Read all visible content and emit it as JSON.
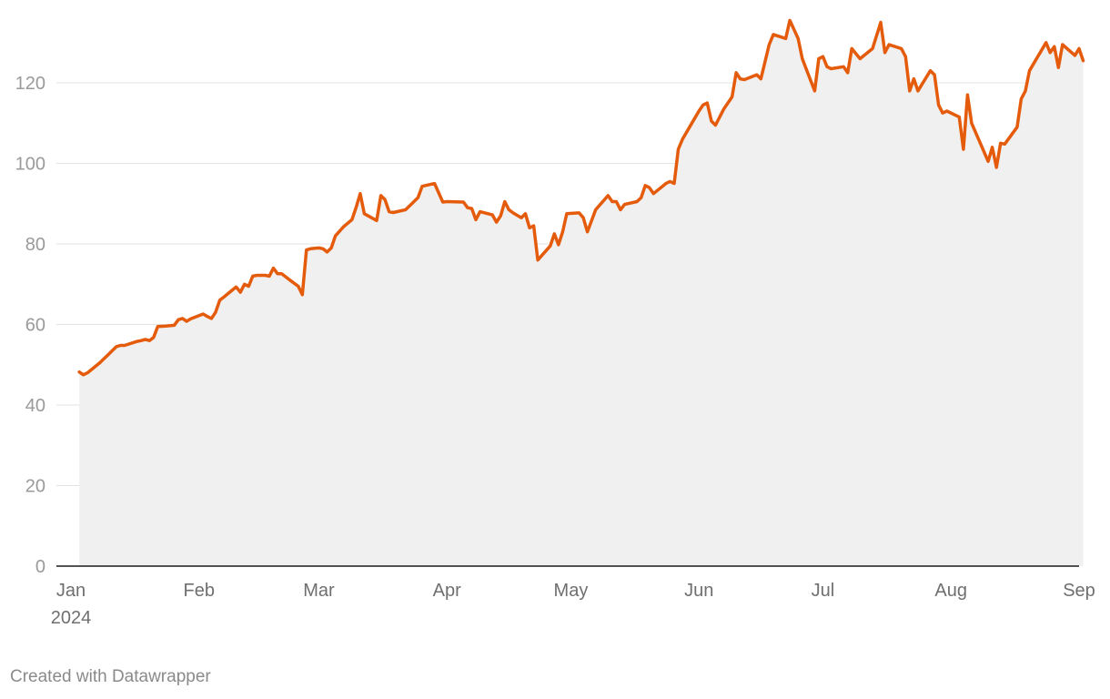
{
  "credit": "Created with Datawrapper",
  "colors": {
    "line": "#e55b0c",
    "area": "#f0f0f0",
    "grid": "#e3e3e3",
    "axis": "#1a1a1a"
  },
  "chart_data": {
    "type": "area",
    "title": "",
    "xlabel": "",
    "ylabel": "",
    "ylim": [
      0,
      135
    ],
    "xlim": [
      "2024-01-01",
      "2024-09-01"
    ],
    "grid": true,
    "yticks": [
      0,
      20,
      40,
      60,
      80,
      100,
      120
    ],
    "xticks": [
      {
        "date": "2024-01-01",
        "label": "Jan",
        "sublabel": "2024"
      },
      {
        "date": "2024-02-01",
        "label": "Feb"
      },
      {
        "date": "2024-03-01",
        "label": "Mar"
      },
      {
        "date": "2024-04-01",
        "label": "Apr"
      },
      {
        "date": "2024-05-01",
        "label": "May"
      },
      {
        "date": "2024-06-01",
        "label": "Jun"
      },
      {
        "date": "2024-07-01",
        "label": "Jul"
      },
      {
        "date": "2024-08-01",
        "label": "Aug"
      },
      {
        "date": "2024-09-01",
        "label": "Sep"
      }
    ],
    "series": [
      {
        "points": [
          [
            "2024-01-03",
            48.2
          ],
          [
            "2024-01-04",
            47.5
          ],
          [
            "2024-01-05",
            48.0
          ],
          [
            "2024-01-08",
            50.5
          ],
          [
            "2024-01-09",
            51.5
          ],
          [
            "2024-01-10",
            52.5
          ],
          [
            "2024-01-11",
            53.5
          ],
          [
            "2024-01-12",
            54.5
          ],
          [
            "2024-01-13",
            54.8
          ],
          [
            "2024-01-14",
            54.8
          ],
          [
            "2024-01-17",
            55.8
          ],
          [
            "2024-01-18",
            56.0
          ],
          [
            "2024-01-19",
            56.3
          ],
          [
            "2024-01-20",
            56.0
          ],
          [
            "2024-01-21",
            56.8
          ],
          [
            "2024-01-22",
            59.5
          ],
          [
            "2024-01-24",
            59.6
          ],
          [
            "2024-01-26",
            59.8
          ],
          [
            "2024-01-27",
            61.2
          ],
          [
            "2024-01-28",
            61.5
          ],
          [
            "2024-01-29",
            60.8
          ],
          [
            "2024-01-30",
            61.4
          ],
          [
            "2024-02-01",
            62.2
          ],
          [
            "2024-02-02",
            62.6
          ],
          [
            "2024-02-03",
            62.0
          ],
          [
            "2024-02-04",
            61.5
          ],
          [
            "2024-02-05",
            63.0
          ],
          [
            "2024-02-06",
            66.0
          ],
          [
            "2024-02-07",
            66.8
          ],
          [
            "2024-02-09",
            68.5
          ],
          [
            "2024-02-10",
            69.3
          ],
          [
            "2024-02-11",
            68.0
          ],
          [
            "2024-02-12",
            70.0
          ],
          [
            "2024-02-13",
            69.5
          ],
          [
            "2024-02-14",
            72.0
          ],
          [
            "2024-02-15",
            72.2
          ],
          [
            "2024-02-17",
            72.2
          ],
          [
            "2024-02-18",
            72.0
          ],
          [
            "2024-02-19",
            74.0
          ],
          [
            "2024-02-20",
            72.6
          ],
          [
            "2024-02-21",
            72.6
          ],
          [
            "2024-02-23",
            71.0
          ],
          [
            "2024-02-25",
            69.5
          ],
          [
            "2024-02-26",
            67.4
          ],
          [
            "2024-02-27",
            78.5
          ],
          [
            "2024-02-28",
            78.8
          ],
          [
            "2024-03-01",
            79.0
          ],
          [
            "2024-03-02",
            78.8
          ],
          [
            "2024-03-03",
            78.0
          ],
          [
            "2024-03-04",
            79.0
          ],
          [
            "2024-03-05",
            82.0
          ],
          [
            "2024-03-07",
            84.3
          ],
          [
            "2024-03-09",
            86.0
          ],
          [
            "2024-03-10",
            89.0
          ],
          [
            "2024-03-11",
            92.5
          ],
          [
            "2024-03-12",
            87.5
          ],
          [
            "2024-03-15",
            85.8
          ],
          [
            "2024-03-16",
            92.0
          ],
          [
            "2024-03-17",
            91.0
          ],
          [
            "2024-03-18",
            88.0
          ],
          [
            "2024-03-19",
            87.8
          ],
          [
            "2024-03-22",
            88.5
          ],
          [
            "2024-03-23",
            89.5
          ],
          [
            "2024-03-25",
            91.5
          ],
          [
            "2024-03-26",
            94.3
          ],
          [
            "2024-03-29",
            95.0
          ],
          [
            "2024-03-31",
            90.4
          ],
          [
            "2024-04-01",
            90.5
          ],
          [
            "2024-04-05",
            90.4
          ],
          [
            "2024-04-06",
            89.0
          ],
          [
            "2024-04-07",
            88.8
          ],
          [
            "2024-04-08",
            86.0
          ],
          [
            "2024-04-09",
            88.0
          ],
          [
            "2024-04-12",
            87.2
          ],
          [
            "2024-04-13",
            85.4
          ],
          [
            "2024-04-14",
            87.0
          ],
          [
            "2024-04-15",
            90.5
          ],
          [
            "2024-04-16",
            88.5
          ],
          [
            "2024-04-17",
            87.7
          ],
          [
            "2024-04-19",
            86.5
          ],
          [
            "2024-04-20",
            87.5
          ],
          [
            "2024-04-21",
            84.0
          ],
          [
            "2024-04-22",
            84.5
          ],
          [
            "2024-04-23",
            76.0
          ],
          [
            "2024-04-26",
            79.5
          ],
          [
            "2024-04-27",
            82.5
          ],
          [
            "2024-04-28",
            79.8
          ],
          [
            "2024-04-29",
            83.0
          ],
          [
            "2024-04-30",
            87.5
          ],
          [
            "2024-05-03",
            87.7
          ],
          [
            "2024-05-04",
            86.5
          ],
          [
            "2024-05-05",
            83.0
          ],
          [
            "2024-05-07",
            88.5
          ],
          [
            "2024-05-10",
            92.0
          ],
          [
            "2024-05-11",
            90.5
          ],
          [
            "2024-05-12",
            90.5
          ],
          [
            "2024-05-13",
            88.5
          ],
          [
            "2024-05-14",
            89.8
          ],
          [
            "2024-05-17",
            90.5
          ],
          [
            "2024-05-18",
            91.5
          ],
          [
            "2024-05-19",
            94.5
          ],
          [
            "2024-05-20",
            94.0
          ],
          [
            "2024-05-21",
            92.5
          ],
          [
            "2024-05-24",
            95.0
          ],
          [
            "2024-05-25",
            95.5
          ],
          [
            "2024-05-26",
            95.0
          ],
          [
            "2024-05-27",
            103.5
          ],
          [
            "2024-05-28",
            106.0
          ],
          [
            "2024-06-01",
            113.0
          ],
          [
            "2024-06-02",
            114.5
          ],
          [
            "2024-06-03",
            115.0
          ],
          [
            "2024-06-04",
            110.5
          ],
          [
            "2024-06-05",
            109.5
          ],
          [
            "2024-06-07",
            113.5
          ],
          [
            "2024-06-09",
            116.5
          ],
          [
            "2024-06-10",
            122.5
          ],
          [
            "2024-06-11",
            121.0
          ],
          [
            "2024-06-12",
            120.8
          ],
          [
            "2024-06-15",
            122.0
          ],
          [
            "2024-06-16",
            121.0
          ],
          [
            "2024-06-18",
            129.5
          ],
          [
            "2024-06-19",
            132.0
          ],
          [
            "2024-06-22",
            131.0
          ],
          [
            "2024-06-23",
            135.5
          ],
          [
            "2024-06-25",
            131.0
          ],
          [
            "2024-06-26",
            126.0
          ],
          [
            "2024-06-29",
            118.0
          ],
          [
            "2024-06-30",
            126.0
          ],
          [
            "2024-07-01",
            126.5
          ],
          [
            "2024-07-02",
            124.0
          ],
          [
            "2024-07-03",
            123.5
          ],
          [
            "2024-07-06",
            124.0
          ],
          [
            "2024-07-07",
            122.5
          ],
          [
            "2024-07-08",
            128.5
          ],
          [
            "2024-07-10",
            126.0
          ],
          [
            "2024-07-13",
            128.5
          ],
          [
            "2024-07-15",
            135.0
          ],
          [
            "2024-07-16",
            127.5
          ],
          [
            "2024-07-17",
            129.5
          ],
          [
            "2024-07-20",
            128.5
          ],
          [
            "2024-07-21",
            126.5
          ],
          [
            "2024-07-22",
            118.0
          ],
          [
            "2024-07-23",
            121.0
          ],
          [
            "2024-07-24",
            118.0
          ],
          [
            "2024-07-27",
            123.0
          ],
          [
            "2024-07-28",
            122.0
          ],
          [
            "2024-07-29",
            114.5
          ],
          [
            "2024-07-30",
            112.5
          ],
          [
            "2024-07-31",
            113.0
          ],
          [
            "2024-08-03",
            111.5
          ],
          [
            "2024-08-04",
            103.5
          ],
          [
            "2024-08-05",
            117.0
          ],
          [
            "2024-08-06",
            110.0
          ],
          [
            "2024-08-10",
            100.5
          ],
          [
            "2024-08-11",
            104.0
          ],
          [
            "2024-08-12",
            99.0
          ],
          [
            "2024-08-13",
            105.0
          ],
          [
            "2024-08-14",
            104.8
          ],
          [
            "2024-08-17",
            109.0
          ],
          [
            "2024-08-18",
            116.0
          ],
          [
            "2024-08-19",
            118.0
          ],
          [
            "2024-08-20",
            123.0
          ],
          [
            "2024-08-24",
            130.0
          ],
          [
            "2024-08-25",
            127.5
          ],
          [
            "2024-08-26",
            129.0
          ],
          [
            "2024-08-27",
            123.8
          ],
          [
            "2024-08-28",
            129.5
          ],
          [
            "2024-08-31",
            126.8
          ],
          [
            "2024-09-01",
            128.5
          ],
          [
            "2024-09-02",
            125.5
          ]
        ]
      }
    ]
  }
}
